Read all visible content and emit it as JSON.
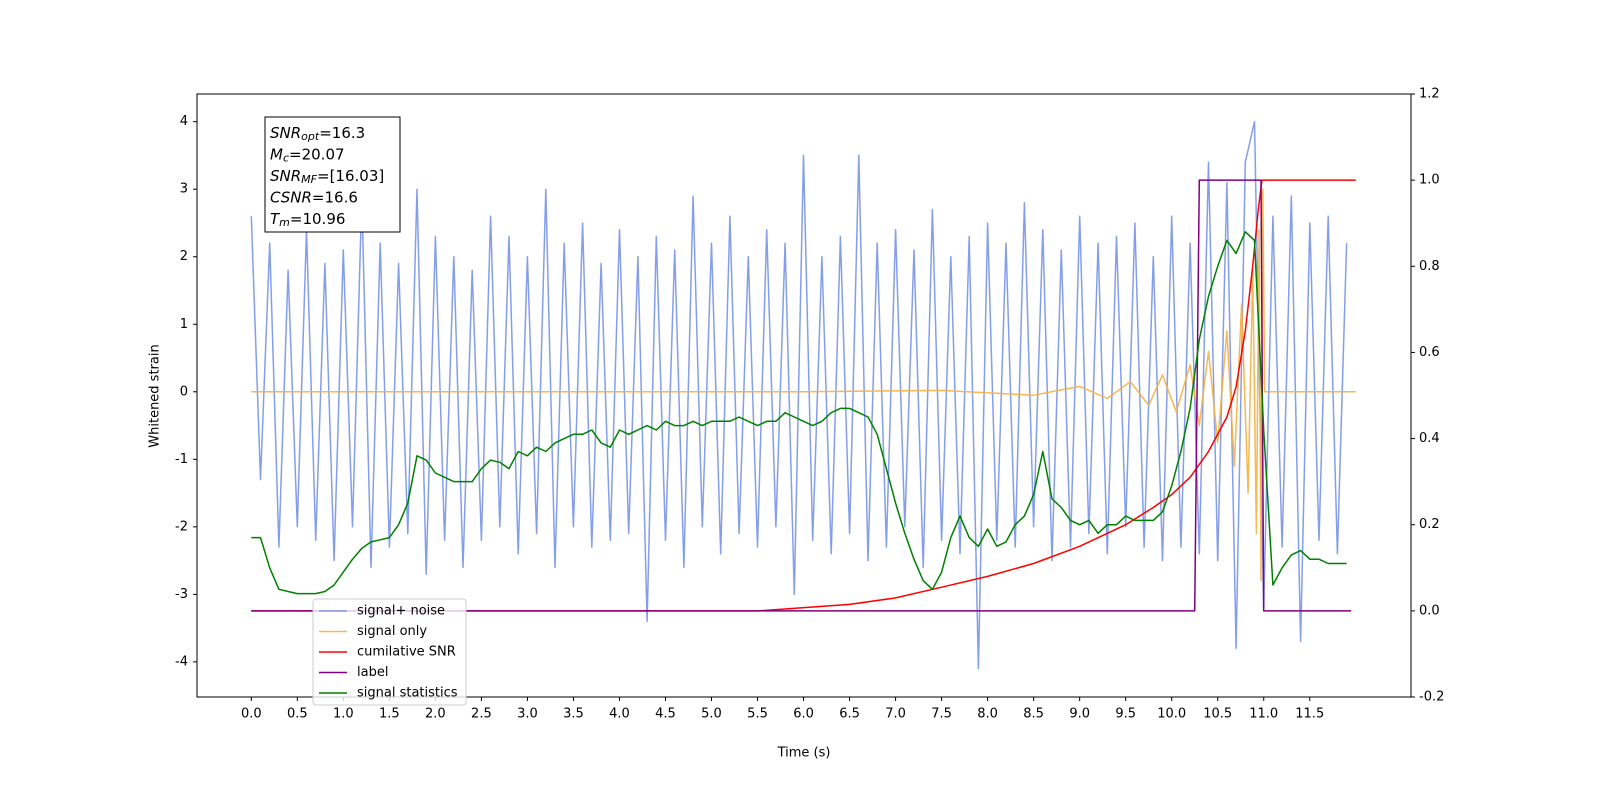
{
  "chart_data": {
    "type": "line",
    "xlabel": "Time (s)",
    "ylabel": "Whitened strain",
    "xlim": [
      -0.59,
      12.6
    ],
    "ylim": [
      -4.52,
      4.41
    ],
    "y2lim": [
      -0.2,
      1.2
    ],
    "xticks": [
      {
        "value": 0,
        "label": "0.0"
      },
      0.5,
      {
        "value": 1,
        "label": "1.0"
      },
      1.5,
      {
        "value": 2,
        "label": "2.0"
      },
      2.5,
      {
        "value": 3,
        "label": "3.0"
      },
      3.5,
      {
        "value": 4,
        "label": "4.0"
      },
      4.5,
      {
        "value": 5,
        "label": "5.0"
      },
      5.5,
      {
        "value": 6,
        "label": "6.0"
      },
      6.5,
      {
        "value": 7,
        "label": "7.0"
      },
      7.5,
      {
        "value": 8,
        "label": "8.0"
      },
      8.5,
      {
        "value": 9,
        "label": "9.0"
      },
      9.5,
      {
        "value": 10,
        "label": "10.0"
      },
      10.5,
      {
        "value": 11,
        "label": "11.0"
      },
      11.5
    ],
    "yticks": [
      -4,
      -3,
      -2,
      -1,
      0,
      1,
      2,
      3,
      4
    ],
    "y2ticks": [
      -0.2,
      {
        "value": 0,
        "label": "0.0"
      },
      0.2,
      0.4,
      0.6,
      0.8,
      {
        "value": 1,
        "label": "1.0"
      },
      1.2
    ],
    "legend": "lower left",
    "annotation": [
      {
        "main": "SNR",
        "sub": "opt",
        "rest": "=16.3"
      },
      {
        "main": "M",
        "sub": "c",
        "rest": "=20.07"
      },
      {
        "main": "SNR",
        "sub": "MF",
        "rest": "=[16.03]"
      },
      {
        "main": "CSNR",
        "sub": null,
        "rest": "=16.6"
      },
      {
        "main": "T",
        "sub": "m",
        "rest": "=10.96"
      }
    ],
    "series": [
      {
        "name": "signal+ noise",
        "color": "#7893e8",
        "x": [
          0.0,
          0.1,
          0.2,
          0.3,
          0.4,
          0.5,
          0.6,
          0.7,
          0.8,
          0.9,
          1.0,
          1.1,
          1.2,
          1.3,
          1.4,
          1.5,
          1.6,
          1.7,
          1.8,
          1.9,
          2.0,
          2.1,
          2.2,
          2.3,
          2.4,
          2.5,
          2.6,
          2.7,
          2.8,
          2.9,
          3.0,
          3.1,
          3.2,
          3.3,
          3.4,
          3.5,
          3.6,
          3.7,
          3.8,
          3.9,
          4.0,
          4.1,
          4.2,
          4.3,
          4.4,
          4.5,
          4.6,
          4.7,
          4.8,
          4.9,
          5.0,
          5.1,
          5.2,
          5.3,
          5.4,
          5.5,
          5.6,
          5.7,
          5.8,
          5.9,
          6.0,
          6.1,
          6.2,
          6.3,
          6.4,
          6.5,
          6.6,
          6.7,
          6.8,
          6.9,
          7.0,
          7.1,
          7.2,
          7.3,
          7.4,
          7.5,
          7.6,
          7.7,
          7.8,
          7.9,
          8.0,
          8.1,
          8.2,
          8.3,
          8.4,
          8.5,
          8.6,
          8.7,
          8.8,
          8.9,
          9.0,
          9.1,
          9.2,
          9.3,
          9.4,
          9.5,
          9.6,
          9.7,
          9.8,
          9.9,
          10.0,
          10.1,
          10.2,
          10.3,
          10.4,
          10.5,
          10.6,
          10.7,
          10.8,
          10.9,
          11.0,
          11.1,
          11.2,
          11.3,
          11.4,
          11.5,
          11.6,
          11.7,
          11.8,
          11.9
        ],
        "values": [
          2.6,
          -1.3,
          2.2,
          -2.3,
          1.8,
          -2.0,
          2.4,
          -2.2,
          1.9,
          -2.5,
          2.1,
          -2.0,
          2.9,
          -2.6,
          2.2,
          -2.3,
          1.9,
          -2.1,
          3.0,
          -2.7,
          2.3,
          -2.2,
          2.0,
          -2.6,
          1.8,
          -2.2,
          2.6,
          -2.0,
          2.3,
          -2.4,
          2.0,
          -2.1,
          3.0,
          -2.6,
          2.2,
          -2.0,
          2.5,
          -2.3,
          1.9,
          -2.2,
          2.4,
          -2.1,
          2.0,
          -3.4,
          2.3,
          -2.2,
          2.1,
          -2.6,
          2.9,
          -2.0,
          2.2,
          -2.4,
          2.6,
          -2.1,
          2.0,
          -2.3,
          2.4,
          -2.0,
          2.2,
          -3.0,
          3.5,
          -2.2,
          2.0,
          -2.4,
          2.3,
          -2.1,
          3.5,
          -2.5,
          2.2,
          -2.3,
          2.4,
          -2.0,
          2.1,
          -2.6,
          2.7,
          -2.2,
          2.0,
          -2.4,
          2.3,
          -4.1,
          2.5,
          -2.2,
          2.2,
          -2.3,
          2.8,
          -2.0,
          2.4,
          -2.5,
          2.1,
          -2.3,
          2.6,
          -2.1,
          2.2,
          -2.4,
          2.3,
          -2.0,
          2.5,
          -2.3,
          2.0,
          -2.5,
          2.6,
          -2.3,
          2.2,
          -2.4,
          3.4,
          -2.5,
          3.1,
          -3.8,
          3.4,
          4.0,
          -3.2,
          2.6,
          -2.3,
          2.9,
          -3.7,
          2.5,
          -2.2,
          2.6,
          -2.4,
          2.2
        ]
      },
      {
        "name": "signal only",
        "color": "#f5b041",
        "x": [
          0,
          6.0,
          7.5,
          8.5,
          9.0,
          9.3,
          9.55,
          9.75,
          9.9,
          10.05,
          10.2,
          10.3,
          10.4,
          10.5,
          10.6,
          10.68,
          10.76,
          10.83,
          10.88,
          10.92,
          10.95,
          10.97,
          10.99,
          11.01,
          12.0
        ],
        "values": [
          0,
          0,
          0.02,
          -0.05,
          0.08,
          -0.1,
          0.15,
          -0.2,
          0.25,
          -0.3,
          0.4,
          -0.5,
          0.6,
          -0.75,
          0.9,
          -1.1,
          1.3,
          -1.5,
          1.8,
          -2.1,
          2.4,
          -2.8,
          3.0,
          0,
          0
        ]
      },
      {
        "name": "cumilative SNR",
        "color": "#ff0000",
        "axis": "y2",
        "x": [
          0,
          5.5,
          6.5,
          7.0,
          7.5,
          8.0,
          8.5,
          9.0,
          9.5,
          9.8,
          10.0,
          10.2,
          10.4,
          10.6,
          10.7,
          10.8,
          10.88,
          10.94,
          10.98,
          12.0
        ],
        "values": [
          0,
          0,
          0.015,
          0.03,
          0.055,
          0.08,
          0.11,
          0.15,
          0.2,
          0.24,
          0.27,
          0.31,
          0.37,
          0.45,
          0.52,
          0.65,
          0.8,
          0.93,
          1.0,
          1.0
        ]
      },
      {
        "name": "label",
        "color": "#800080",
        "axis": "y2",
        "x": [
          0,
          10.25,
          10.3,
          10.97,
          11.0,
          11.95
        ],
        "values": [
          0,
          0,
          1,
          1,
          0,
          0
        ]
      },
      {
        "name": "signal statistics",
        "color": "#008000",
        "axis": "y2",
        "x": [
          0.0,
          0.1,
          0.2,
          0.3,
          0.4,
          0.5,
          0.6,
          0.7,
          0.8,
          0.9,
          1.0,
          1.1,
          1.2,
          1.3,
          1.4,
          1.5,
          1.6,
          1.7,
          1.8,
          1.9,
          2.0,
          2.1,
          2.2,
          2.3,
          2.4,
          2.5,
          2.6,
          2.7,
          2.8,
          2.9,
          3.0,
          3.1,
          3.2,
          3.3,
          3.4,
          3.5,
          3.6,
          3.7,
          3.8,
          3.9,
          4.0,
          4.1,
          4.2,
          4.3,
          4.4,
          4.5,
          4.6,
          4.7,
          4.8,
          4.9,
          5.0,
          5.1,
          5.2,
          5.3,
          5.4,
          5.5,
          5.6,
          5.7,
          5.8,
          5.9,
          6.0,
          6.1,
          6.2,
          6.3,
          6.4,
          6.5,
          6.6,
          6.7,
          6.8,
          6.9,
          7.0,
          7.1,
          7.2,
          7.3,
          7.4,
          7.5,
          7.6,
          7.7,
          7.8,
          7.9,
          8.0,
          8.1,
          8.2,
          8.3,
          8.4,
          8.5,
          8.6,
          8.7,
          8.8,
          8.9,
          9.0,
          9.1,
          9.2,
          9.3,
          9.4,
          9.5,
          9.6,
          9.7,
          9.8,
          9.9,
          10.0,
          10.1,
          10.2,
          10.3,
          10.4,
          10.5,
          10.6,
          10.7,
          10.8,
          10.9,
          11.0,
          11.1,
          11.2,
          11.3,
          11.4,
          11.5,
          11.6,
          11.7,
          11.8,
          11.9
        ],
        "values": [
          0.17,
          0.17,
          0.1,
          0.05,
          0.045,
          0.04,
          0.04,
          0.04,
          0.045,
          0.06,
          0.09,
          0.12,
          0.145,
          0.16,
          0.165,
          0.17,
          0.2,
          0.25,
          0.36,
          0.35,
          0.32,
          0.31,
          0.3,
          0.3,
          0.3,
          0.33,
          0.35,
          0.345,
          0.33,
          0.37,
          0.36,
          0.38,
          0.37,
          0.39,
          0.4,
          0.41,
          0.41,
          0.42,
          0.39,
          0.38,
          0.42,
          0.41,
          0.42,
          0.43,
          0.42,
          0.44,
          0.43,
          0.43,
          0.44,
          0.43,
          0.44,
          0.44,
          0.44,
          0.45,
          0.44,
          0.43,
          0.44,
          0.44,
          0.46,
          0.45,
          0.44,
          0.43,
          0.44,
          0.46,
          0.47,
          0.47,
          0.46,
          0.45,
          0.41,
          0.33,
          0.25,
          0.18,
          0.12,
          0.07,
          0.05,
          0.09,
          0.17,
          0.22,
          0.17,
          0.15,
          0.19,
          0.15,
          0.16,
          0.2,
          0.22,
          0.27,
          0.37,
          0.26,
          0.24,
          0.21,
          0.2,
          0.21,
          0.18,
          0.2,
          0.2,
          0.22,
          0.21,
          0.21,
          0.21,
          0.23,
          0.29,
          0.37,
          0.47,
          0.63,
          0.73,
          0.8,
          0.86,
          0.83,
          0.88,
          0.86,
          0.42,
          0.06,
          0.1,
          0.13,
          0.14,
          0.12,
          0.12,
          0.11,
          0.11,
          0.11
        ]
      }
    ]
  }
}
